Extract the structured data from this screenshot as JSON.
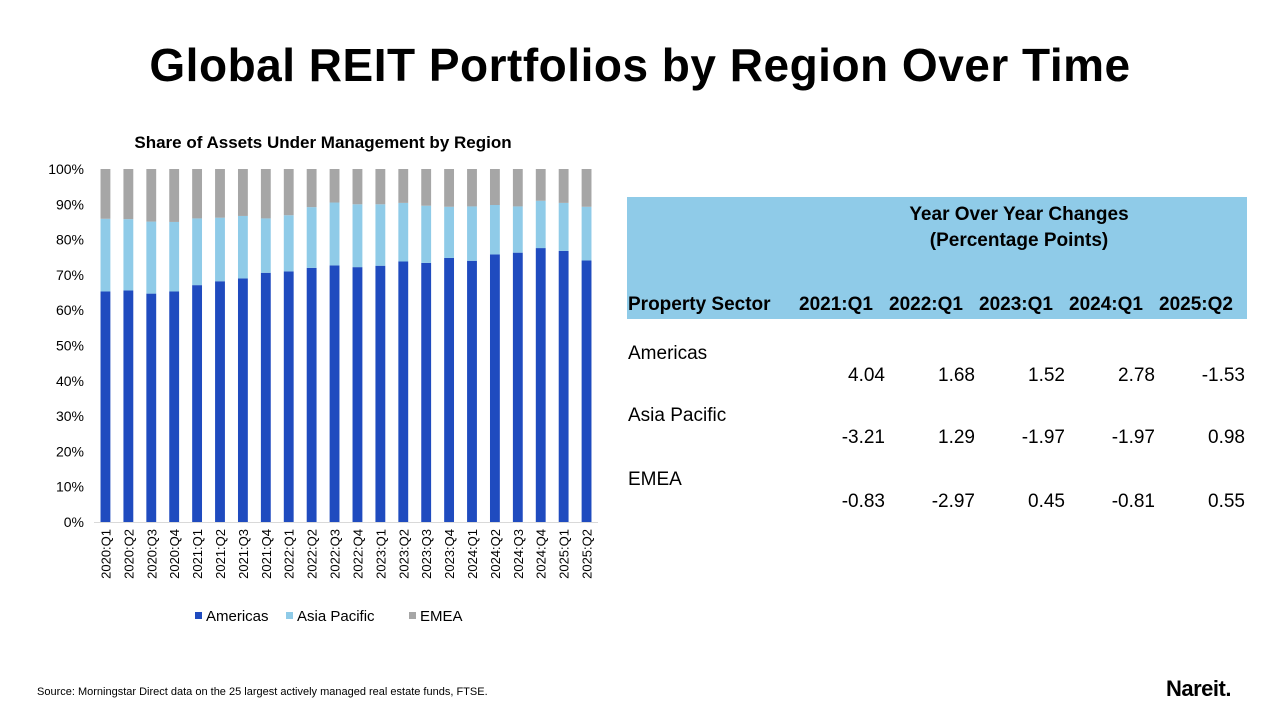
{
  "page": {
    "title": "Global REIT Portfolios by Region Over Time",
    "source": "Source: Morningstar Direct data on the 25 largest actively managed real estate funds, FTSE.",
    "logo": "Nareit",
    "logo_mark": "."
  },
  "colors": {
    "americas": "#1F4BBF",
    "asia_pacific": "#8FCBE8",
    "emea": "#A6A6A6",
    "table_header": "#8FCBE8"
  },
  "chart_data": {
    "type": "bar",
    "stacked": true,
    "title": "Share of Assets Under Management by Region",
    "categories": [
      "2020:Q1",
      "2020:Q2",
      "2020:Q3",
      "2020:Q4",
      "2021:Q1",
      "2021:Q2",
      "2021:Q3",
      "2021:Q4",
      "2022:Q1",
      "2022:Q2",
      "2022:Q3",
      "2022:Q4",
      "2023:Q1",
      "2023:Q2",
      "2023:Q3",
      "2023:Q4",
      "2024:Q1",
      "2024:Q2",
      "2024:Q3",
      "2024:Q4",
      "2025:Q1",
      "2025:Q2"
    ],
    "series": [
      {
        "name": "Americas",
        "color": "#1F4BBF",
        "values": [
          65.3,
          65.6,
          64.7,
          65.3,
          67.1,
          68.2,
          69.0,
          70.6,
          71.0,
          72.0,
          72.7,
          72.2,
          72.6,
          73.8,
          73.4,
          74.8,
          74.0,
          75.8,
          76.3,
          77.6,
          76.8,
          74.1
        ]
      },
      {
        "name": "Asia Pacific",
        "color": "#8FCBE8",
        "values": [
          20.6,
          20.2,
          20.4,
          19.7,
          18.9,
          18.0,
          17.7,
          15.4,
          15.9,
          17.2,
          17.8,
          17.8,
          17.4,
          16.6,
          16.2,
          14.5,
          15.4,
          14.0,
          13.1,
          13.4,
          13.6,
          15.2
        ]
      },
      {
        "name": "EMEA",
        "color": "#A6A6A6",
        "values": [
          14.1,
          14.2,
          14.9,
          15.0,
          14.0,
          13.8,
          13.3,
          14.0,
          13.1,
          10.8,
          9.5,
          10.0,
          10.0,
          9.6,
          10.4,
          10.7,
          10.6,
          10.2,
          10.6,
          9.0,
          9.6,
          10.7
        ]
      }
    ],
    "ylim": [
      0,
      100
    ],
    "yticks": [
      "0%",
      "10%",
      "20%",
      "30%",
      "40%",
      "50%",
      "60%",
      "70%",
      "80%",
      "90%",
      "100%"
    ],
    "legend": "bottom",
    "grid": false
  },
  "yoy_table": {
    "title_line1": "Year Over Year Changes",
    "title_line2": "(Percentage Points)",
    "columns": [
      "Property Sector",
      "2021:Q1",
      "2022:Q1",
      "2023:Q1",
      "2024:Q1",
      "2025:Q2"
    ],
    "rows": [
      {
        "label": "Americas",
        "values": [
          "4.04",
          "1.68",
          "1.52",
          "2.78",
          "-1.53"
        ]
      },
      {
        "label": "Asia Pacific",
        "values": [
          "-3.21",
          "1.29",
          "-1.97",
          "-1.97",
          "0.98"
        ]
      },
      {
        "label": "EMEA",
        "values": [
          "-0.83",
          "-2.97",
          "0.45",
          "-0.81",
          "0.55"
        ]
      }
    ]
  }
}
